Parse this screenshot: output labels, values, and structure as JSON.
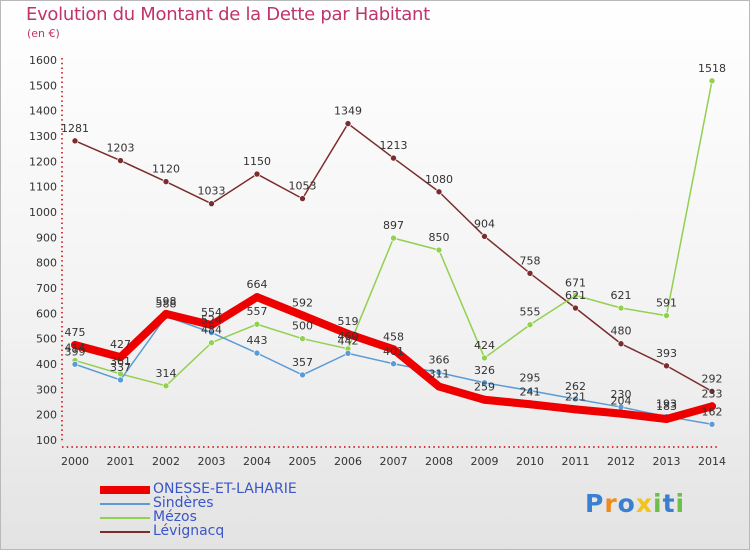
{
  "title": "Evolution du Montant de la Dette par Habitant",
  "unit": "(en €)",
  "logo": [
    "P",
    "r",
    "o",
    "x",
    "i",
    "t",
    "i"
  ],
  "logo_colors": [
    "#3a7fd0",
    "#f08a1c",
    "#3a7fd0",
    "#f0c419",
    "#6cc04a",
    "#3a7fd0",
    "#6cc04a"
  ],
  "chart_data": {
    "type": "line",
    "title": "Evolution du Montant de la Dette par Habitant",
    "ylabel": "(en €)",
    "x": [
      "2000",
      "2001",
      "2002",
      "2003",
      "2004",
      "2005",
      "2006",
      "2007",
      "2008",
      "2009",
      "2010",
      "2011",
      "2012",
      "2013",
      "2014"
    ],
    "ylim": [
      100,
      1600
    ],
    "yticks": [
      100,
      200,
      300,
      400,
      500,
      600,
      700,
      800,
      900,
      1000,
      1100,
      1200,
      1300,
      1400,
      1500,
      1600
    ],
    "grid": false,
    "legend_position": "bottom-left",
    "series": [
      {
        "name": "ONESSE-ET-LAHARIE",
        "color": "#ee0000",
        "values": [
          475,
          427,
          598,
          554,
          664,
          592,
          519,
          458,
          311,
          259,
          241,
          221,
          204,
          183,
          233
        ]
      },
      {
        "name": "Sindères",
        "color": "#5b9bd5",
        "values": [
          399,
          337,
          588,
          524,
          443,
          357,
          442,
          401,
          366,
          326,
          295,
          262,
          230,
          193,
          162
        ]
      },
      {
        "name": "Mézos",
        "color": "#92d050",
        "values": [
          414,
          361,
          314,
          484,
          557,
          500,
          460,
          897,
          850,
          424,
          555,
          671,
          621,
          591,
          1518
        ]
      },
      {
        "name": "Lévignacq",
        "color": "#7b2d2d",
        "values": [
          1281,
          1203,
          1120,
          1033,
          1150,
          1053,
          1349,
          1213,
          1080,
          904,
          758,
          621,
          480,
          393,
          292
        ]
      }
    ],
    "data_labels": [
      [
        475,
        427,
        598,
        554,
        664,
        592,
        519,
        458,
        311,
        259,
        241,
        221,
        204,
        183,
        233
      ],
      [
        399,
        337,
        588,
        524,
        443,
        357,
        442,
        401,
        366,
        326,
        295,
        262,
        230,
        193,
        162
      ],
      [
        414,
        361,
        314,
        484,
        557,
        500,
        460,
        897,
        850,
        424,
        555,
        671,
        621,
        591,
        1518
      ],
      [
        1281,
        1203,
        1120,
        1033,
        1150,
        1053,
        1349,
        1213,
        1080,
        904,
        758,
        621,
        480,
        393,
        292
      ]
    ]
  }
}
